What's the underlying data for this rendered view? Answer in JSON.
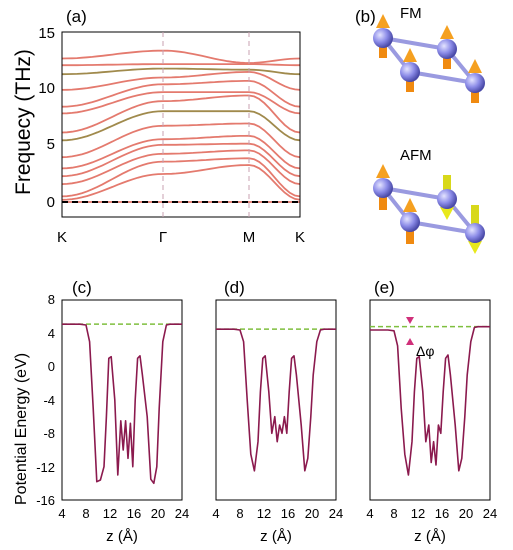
{
  "panel_labels": [
    "(a)",
    "(b)",
    "(c)",
    "(d)",
    "(e)"
  ],
  "band_panel": {
    "ylabel": "Frequecy (THz)",
    "yticks": [
      "15",
      "10",
      "5",
      "0"
    ],
    "kpoints": [
      "K",
      "Γ",
      "M",
      "K"
    ]
  },
  "structure_panel": {
    "fm_label": "FM",
    "afm_label": "AFM"
  },
  "potential_panels": {
    "ylabel": "Potential Energy (eV)",
    "xlabel": "z (Å)",
    "xticks": [
      "4",
      "8",
      "12",
      "16",
      "20",
      "24"
    ],
    "yticks": [
      "8",
      "4",
      "0",
      "-4",
      "-8",
      "-12",
      "-16"
    ],
    "annotation": "Δφ"
  },
  "colors": {
    "band_red": "#e47a6e",
    "band_green": "#a08a4c",
    "potential_line": "#8b1a4e",
    "vacuum_dash": "#7fbf3f",
    "atom": "#8c8ce8",
    "bond": "#8f8fd8",
    "arrow_orange": "#f08a10",
    "arrow_yellow": "#e8e81a",
    "delta_marker": "#d0307a"
  },
  "chart_data": [
    {
      "type": "line",
      "panel": "(a)",
      "xlabel": "",
      "ylabel": "Frequecy (THz)",
      "x_ticks": [
        "K",
        "Γ",
        "M",
        "K"
      ],
      "ylim": [
        -2,
        15
      ],
      "series": [
        {
          "values": [
            0.0,
            0.0,
            0.0
          ]
        },
        {
          "values": [
            0.2,
            2.5,
            3.3
          ]
        },
        {
          "values": [
            0.5,
            3.6,
            3.9
          ]
        },
        {
          "values": [
            1.6,
            4.3,
            4.6
          ]
        },
        {
          "values": [
            2.3,
            5.1,
            5.2
          ]
        },
        {
          "values": [
            3.0,
            5.6,
            5.9
          ]
        },
        {
          "values": [
            4.0,
            6.8,
            7.0
          ]
        },
        {
          "values": [
            5.5,
            8.1,
            8.1
          ]
        },
        {
          "values": [
            6.2,
            9.0,
            9.5
          ]
        },
        {
          "values": [
            7.9,
            9.8,
            9.8
          ]
        },
        {
          "values": [
            8.5,
            10.5,
            10.8
          ]
        },
        {
          "values": [
            10.0,
            11.1,
            11.6
          ]
        },
        {
          "values": [
            11.4,
            11.9,
            11.8
          ]
        },
        {
          "values": [
            12.2,
            12.3,
            12.3
          ]
        },
        {
          "values": [
            12.8,
            13.5,
            12.4
          ]
        }
      ]
    },
    {
      "type": "line",
      "panel": "(c)",
      "xlabel": "z (Å)",
      "ylabel": "Potential Energy (eV)",
      "xlim": [
        4,
        24
      ],
      "ylim": [
        -16,
        8
      ],
      "vacuum_level": 5.1,
      "x": [
        4,
        7,
        8,
        8.6,
        9.2,
        9.8,
        10.4,
        11,
        11.4,
        11.8,
        12.2,
        12.8,
        13.3,
        13.8,
        14.2,
        14.6,
        15,
        15.4,
        15.8,
        16.2,
        16.6,
        17,
        17.4,
        18.2,
        18.8,
        19.3,
        19.8,
        20.2,
        20.8,
        21.4,
        22,
        24
      ],
      "y": [
        5.1,
        5.1,
        5.0,
        3.0,
        -5.0,
        -13.8,
        -13.6,
        -12.0,
        -6.0,
        1.0,
        1.2,
        -4.0,
        -13.0,
        -6.5,
        -10.0,
        -6.5,
        -11.0,
        -6.8,
        -12.0,
        -4.0,
        1.0,
        1.3,
        -1.0,
        -6.0,
        -13.5,
        -14.0,
        -12.0,
        -5.0,
        3.0,
        5.0,
        5.1,
        5.1
      ]
    },
    {
      "type": "line",
      "panel": "(d)",
      "xlabel": "z (Å)",
      "ylabel": "",
      "xlim": [
        4,
        24
      ],
      "ylim": [
        -16,
        8
      ],
      "vacuum_level": 4.5,
      "x": [
        4,
        7,
        8,
        8.6,
        9.2,
        9.8,
        10.4,
        11,
        11.4,
        11.8,
        12.2,
        12.8,
        13.3,
        13.8,
        14.2,
        14.6,
        15,
        15.4,
        15.8,
        16.2,
        16.6,
        17,
        17.4,
        18.2,
        18.8,
        19.3,
        19.8,
        20.2,
        20.8,
        21.4,
        22,
        24
      ],
      "y": [
        4.5,
        4.5,
        4.4,
        3.0,
        -4.0,
        -10.5,
        -12.5,
        -9.0,
        -3.0,
        1.0,
        1.3,
        -3.0,
        -8.0,
        -6.0,
        -9.0,
        -7.0,
        -8.0,
        -6.0,
        -8.0,
        -3.0,
        1.0,
        1.3,
        -1.0,
        -7.0,
        -12.5,
        -11.0,
        -6.0,
        -1.0,
        3.0,
        4.4,
        4.5,
        4.5
      ]
    },
    {
      "type": "line",
      "panel": "(e)",
      "xlabel": "z (Å)",
      "ylabel": "",
      "xlim": [
        4,
        24
      ],
      "ylim": [
        -16,
        8
      ],
      "vacuum_level_left": 4.4,
      "vacuum_level_right": 4.8,
      "x": [
        4,
        7,
        8,
        8.6,
        9.2,
        9.8,
        10.4,
        11,
        11.4,
        11.8,
        12.2,
        12.8,
        13.3,
        13.8,
        14.2,
        14.6,
        15,
        15.4,
        15.8,
        16.2,
        16.6,
        17,
        17.4,
        18.2,
        18.8,
        19.3,
        19.8,
        20.2,
        20.8,
        21.4,
        22,
        24
      ],
      "y": [
        4.4,
        4.4,
        4.3,
        2.5,
        -5.0,
        -10.5,
        -13.0,
        -9.0,
        -3.0,
        1.0,
        1.2,
        -3.0,
        -9.0,
        -7.0,
        -11.5,
        -9.0,
        -11.8,
        -7.0,
        -8.0,
        -3.0,
        1.0,
        1.4,
        -1.0,
        -7.0,
        -12.5,
        -11.0,
        -6.0,
        -1.0,
        3.0,
        4.7,
        4.8,
        4.8
      ]
    }
  ]
}
